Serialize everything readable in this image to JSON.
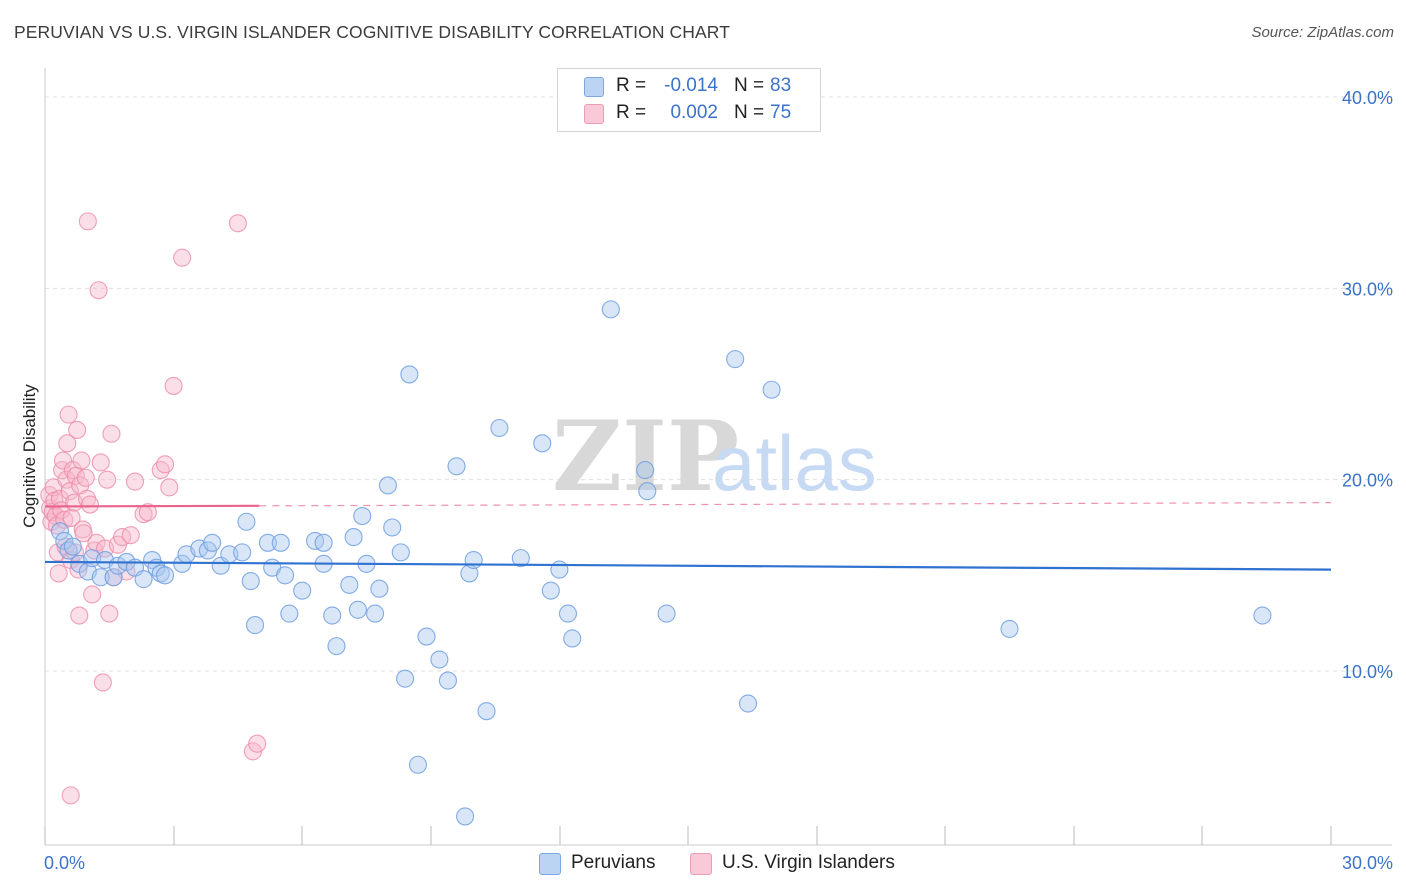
{
  "title": "PERUVIAN VS U.S. VIRGIN ISLANDER COGNITIVE DISABILITY CORRELATION CHART",
  "source": "Source: ZipAtlas.com",
  "watermark": {
    "zip": "ZIP",
    "atlas": "atlas"
  },
  "legend": {
    "rows": [
      {
        "r_label": "R =",
        "r_value": "-0.014",
        "n_label": "N =",
        "n_value": "83"
      },
      {
        "r_label": "R =",
        "r_value": "0.002",
        "n_label": "N =",
        "n_value": "75"
      }
    ]
  },
  "colors": {
    "blue_fill": "#a9c8f0",
    "blue_stroke": "#6f9fe0",
    "blue_line": "#2f72d0",
    "pink_fill": "#f6b9cc",
    "pink_stroke": "#ec8aa8",
    "pink_line": "#e8648d",
    "axis_label": "#3b73c9",
    "grid": "#dddddd"
  },
  "chart_data": {
    "type": "scatter",
    "title": "PERUVIAN VS U.S. VIRGIN ISLANDER COGNITIVE DISABILITY CORRELATION CHART",
    "xlabel": "",
    "ylabel": "Cognitive Disability",
    "xlim": [
      0,
      30
    ],
    "ylim": [
      0,
      40
    ],
    "x_tick_labels": [
      "0.0%",
      "30.0%"
    ],
    "y_ticks": [
      10,
      20,
      30,
      40
    ],
    "y_tick_labels": [
      "10.0%",
      "20.0%",
      "30.0%",
      "40.0%"
    ],
    "grid": true,
    "legend_position": "bottom",
    "series": [
      {
        "name": "Peruvians",
        "R": -0.014,
        "N": 83,
        "trend": {
          "x0": 0.0,
          "y0": 15.7,
          "x1": 30.0,
          "y1": 15.3
        },
        "points": [
          [
            0.35,
            17.3
          ],
          [
            0.45,
            16.8
          ],
          [
            0.55,
            16.3
          ],
          [
            0.65,
            16.5
          ],
          [
            0.8,
            15.6
          ],
          [
            1.0,
            15.2
          ],
          [
            1.1,
            15.9
          ],
          [
            1.3,
            14.9
          ],
          [
            1.4,
            15.8
          ],
          [
            1.6,
            14.9
          ],
          [
            1.7,
            15.5
          ],
          [
            1.9,
            15.7
          ],
          [
            2.1,
            15.4
          ],
          [
            2.3,
            14.8
          ],
          [
            2.5,
            15.8
          ],
          [
            2.6,
            15.4
          ],
          [
            2.7,
            15.1
          ],
          [
            2.8,
            15.0
          ],
          [
            3.2,
            15.6
          ],
          [
            3.3,
            16.1
          ],
          [
            3.6,
            16.4
          ],
          [
            3.8,
            16.3
          ],
          [
            3.9,
            16.7
          ],
          [
            4.1,
            15.5
          ],
          [
            4.3,
            16.1
          ],
          [
            4.6,
            16.2
          ],
          [
            4.7,
            17.8
          ],
          [
            4.8,
            14.7
          ],
          [
            4.9,
            12.4
          ],
          [
            5.2,
            16.7
          ],
          [
            5.3,
            15.4
          ],
          [
            5.5,
            16.7
          ],
          [
            5.6,
            15.0
          ],
          [
            5.7,
            13.0
          ],
          [
            6.0,
            14.2
          ],
          [
            6.3,
            16.8
          ],
          [
            6.5,
            15.6
          ],
          [
            6.5,
            16.7
          ],
          [
            6.7,
            12.9
          ],
          [
            6.8,
            11.3
          ],
          [
            7.1,
            14.5
          ],
          [
            7.2,
            17.0
          ],
          [
            7.3,
            13.2
          ],
          [
            7.4,
            18.1
          ],
          [
            7.5,
            15.6
          ],
          [
            7.7,
            13.0
          ],
          [
            7.8,
            14.3
          ],
          [
            8.0,
            19.7
          ],
          [
            8.1,
            17.5
          ],
          [
            8.3,
            16.2
          ],
          [
            8.4,
            9.6
          ],
          [
            8.5,
            25.5
          ],
          [
            8.7,
            5.1
          ],
          [
            8.9,
            11.8
          ],
          [
            9.2,
            10.6
          ],
          [
            9.4,
            9.5
          ],
          [
            9.6,
            20.7
          ],
          [
            9.8,
            2.4
          ],
          [
            9.9,
            15.1
          ],
          [
            10.0,
            15.8
          ],
          [
            10.3,
            7.9
          ],
          [
            10.6,
            22.7
          ],
          [
            11.1,
            15.9
          ],
          [
            11.6,
            21.9
          ],
          [
            11.8,
            14.2
          ],
          [
            12.0,
            15.3
          ],
          [
            12.2,
            13.0
          ],
          [
            12.3,
            11.7
          ],
          [
            13.2,
            28.9
          ],
          [
            14.0,
            20.5
          ],
          [
            14.05,
            19.4
          ],
          [
            14.5,
            13.0
          ],
          [
            16.1,
            26.3
          ],
          [
            16.4,
            8.3
          ],
          [
            16.95,
            24.7
          ],
          [
            22.5,
            12.2
          ],
          [
            28.4,
            12.9
          ]
        ]
      },
      {
        "name": "U.S. Virgin Islanders",
        "R": 0.002,
        "N": 75,
        "trend": {
          "x0": 0.0,
          "y0": 18.6,
          "x1": 30.0,
          "y1": 18.8,
          "solid_until_x": 5.0
        },
        "points": [
          [
            0.1,
            19.2
          ],
          [
            0.12,
            18.5
          ],
          [
            0.15,
            17.8
          ],
          [
            0.18,
            18.3
          ],
          [
            0.2,
            19.6
          ],
          [
            0.22,
            18.9
          ],
          [
            0.25,
            18.1
          ],
          [
            0.28,
            17.6
          ],
          [
            0.3,
            16.2
          ],
          [
            0.32,
            15.1
          ],
          [
            0.35,
            19.0
          ],
          [
            0.38,
            18.4
          ],
          [
            0.4,
            20.5
          ],
          [
            0.42,
            21.0
          ],
          [
            0.45,
            17.9
          ],
          [
            0.48,
            16.5
          ],
          [
            0.5,
            20.0
          ],
          [
            0.52,
            21.9
          ],
          [
            0.55,
            23.4
          ],
          [
            0.58,
            19.4
          ],
          [
            0.6,
            15.8
          ],
          [
            0.62,
            18.0
          ],
          [
            0.65,
            20.5
          ],
          [
            0.68,
            18.8
          ],
          [
            0.7,
            16.2
          ],
          [
            0.72,
            20.2
          ],
          [
            0.75,
            22.6
          ],
          [
            0.78,
            15.3
          ],
          [
            0.8,
            12.9
          ],
          [
            0.82,
            19.7
          ],
          [
            0.85,
            21.0
          ],
          [
            0.88,
            17.4
          ],
          [
            0.9,
            17.2
          ],
          [
            0.95,
            20.1
          ],
          [
            0.98,
            19.0
          ],
          [
            1.0,
            33.5
          ],
          [
            1.05,
            18.7
          ],
          [
            1.1,
            14.0
          ],
          [
            1.15,
            16.3
          ],
          [
            1.2,
            16.7
          ],
          [
            1.25,
            29.9
          ],
          [
            1.3,
            20.9
          ],
          [
            1.35,
            9.4
          ],
          [
            1.4,
            16.4
          ],
          [
            1.45,
            20.0
          ],
          [
            1.5,
            13.0
          ],
          [
            1.55,
            22.4
          ],
          [
            1.6,
            14.9
          ],
          [
            1.7,
            16.6
          ],
          [
            1.8,
            17.0
          ],
          [
            1.9,
            15.2
          ],
          [
            2.0,
            17.1
          ],
          [
            2.1,
            19.9
          ],
          [
            2.3,
            18.2
          ],
          [
            2.4,
            18.3
          ],
          [
            2.7,
            20.5
          ],
          [
            2.8,
            20.8
          ],
          [
            2.9,
            19.6
          ],
          [
            3.0,
            24.9
          ],
          [
            3.2,
            31.6
          ],
          [
            4.5,
            33.4
          ],
          [
            4.85,
            5.8
          ],
          [
            4.95,
            6.2
          ],
          [
            0.6,
            3.5
          ]
        ]
      }
    ]
  }
}
